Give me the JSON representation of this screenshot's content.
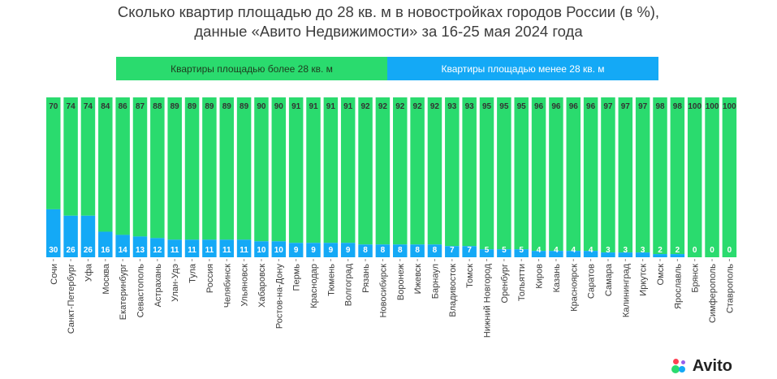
{
  "title_line1": "Сколько квартир площадью до 28 кв. м в новостройках городов России (в %),",
  "title_line2": "данные «Авито Недвижимости» за 16-25 мая 2024 года",
  "colors": {
    "over": "#2adb6e",
    "under": "#14a9f6",
    "label_dark": "#333333",
    "label_light": "#ffffff"
  },
  "brand": {
    "name": "Avito",
    "dot_colors": [
      "#2adb6e",
      "#14a9f6",
      "#ff4053",
      "#965eeb"
    ]
  },
  "chart_data": {
    "type": "bar",
    "stacked": true,
    "orientation": "vertical",
    "title": "Сколько квартир площадью до 28 кв. м в новостройках городов России (в %), данные «Авито Недвижимости» за 16-25 мая 2024 года",
    "legend_position": "top",
    "ylim": [
      0,
      100
    ],
    "categories": [
      "Сочи",
      "Санкт-Петербург",
      "Уфа",
      "Москва",
      "Екатеринбург",
      "Севастополь",
      "Астрахань",
      "Улан-Удэ",
      "Тула",
      "Россия",
      "Челябинск",
      "Ульяновск",
      "Хабаровск",
      "Ростов-на-Дону",
      "Пермь",
      "Краснодар",
      "Тюмень",
      "Волгоград",
      "Рязань",
      "Новосибирск",
      "Воронеж",
      "Ижевск",
      "Барнаул",
      "Владивосток",
      "Томск",
      "Нижний Новгород",
      "Оренбург",
      "Тольятти",
      "Киров",
      "Казань",
      "Красноярск",
      "Саратов",
      "Самара",
      "Калининград",
      "Иркутск",
      "Омск",
      "Ярославль",
      "Брянск",
      "Симферополь",
      "Ставрополь"
    ],
    "series": [
      {
        "name": "Квартиры площадью менее 28 кв. м",
        "key": "under",
        "values": [
          30,
          26,
          26,
          16,
          14,
          13,
          12,
          11,
          11,
          11,
          11,
          11,
          10,
          10,
          9,
          9,
          9,
          9,
          8,
          8,
          8,
          8,
          8,
          7,
          7,
          5,
          5,
          5,
          4,
          4,
          4,
          4,
          3,
          3,
          3,
          2,
          2,
          0,
          0,
          0
        ]
      },
      {
        "name": "Квартиры площадью более 28 кв. м",
        "key": "over",
        "values": [
          70,
          74,
          74,
          84,
          86,
          87,
          88,
          89,
          89,
          89,
          89,
          89,
          90,
          90,
          91,
          91,
          91,
          91,
          92,
          92,
          92,
          92,
          92,
          93,
          93,
          95,
          95,
          95,
          96,
          96,
          96,
          96,
          97,
          97,
          97,
          98,
          98,
          100,
          100,
          100
        ]
      }
    ]
  }
}
